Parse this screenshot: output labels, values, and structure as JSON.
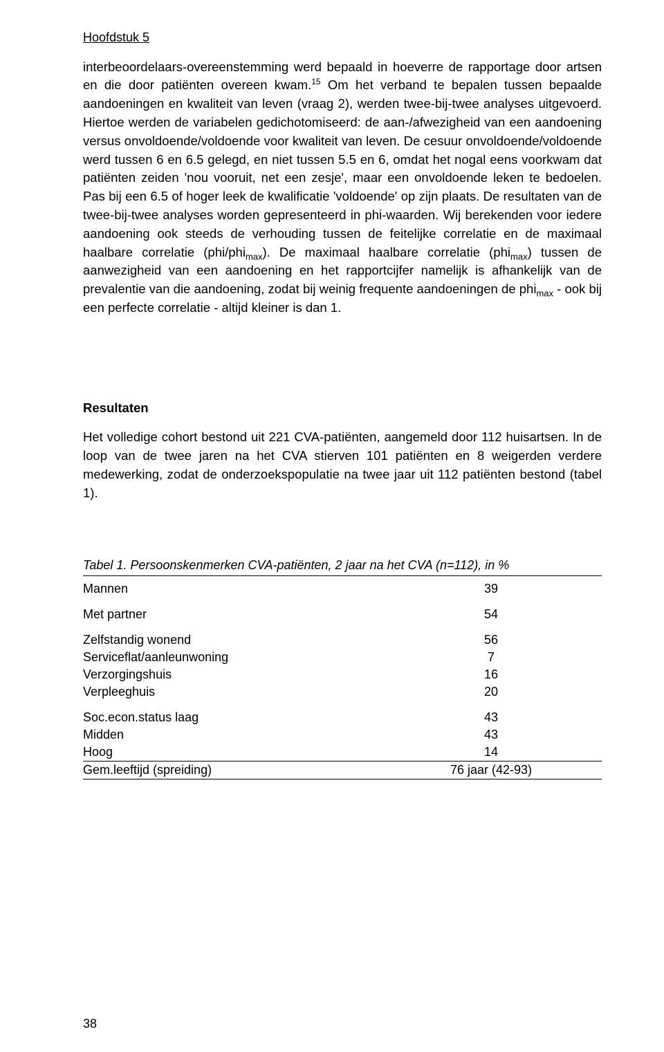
{
  "runningHead": "Hoofdstuk 5",
  "paragraphs": {
    "p1a": "interbeoordelaars-overeenstemming werd bepaald in hoeverre de rapportage door artsen en die door patiënten overeen kwam.",
    "p1_sup": "15",
    "p1b": " Om het verband te bepalen tussen bepaalde aandoeningen en kwaliteit van leven (vraag 2), werden twee-bij-twee analyses uitgevoerd. Hiertoe werden de variabelen gedichotomiseerd: de aan-/afwezigheid van een aandoening versus onvoldoende/voldoende voor kwaliteit van leven. De cesuur onvoldoende/voldoende werd tussen 6 en 6.5 gelegd, en niet tussen 5.5 en 6, omdat het nogal eens voor­kwam dat patiënten zeiden 'nou vooruit, net een zesje', maar een onvoldoende leken te bedoelen. Pas bij een 6.5 of hoger leek de kwalificatie 'voldoende' op zijn plaats. De resultaten van de twee-bij-twee analyses worden gepresenteerd in phi-waarden. Wij berekenden voor iedere aandoening ook steeds de verhouding tussen de feitelijke correlatie en de maximaal haalbare correlatie (phi/phi",
    "p1_sub1": "max",
    "p1c": "). De maximaal haalbare correlatie (phi",
    "p1_sub2": "max",
    "p1d": ") tussen de aanwezigheid van een aandoening en het rapportcijfer namelijk is afhankelijk van de prevalentie van die aandoening, zodat bij weinig frequente aandoeningen de phi",
    "p1_sub3": "max",
    "p1e": " - ook bij een perfecte correlatie - altijd kleiner is dan 1."
  },
  "resultsHeading": "Resultaten",
  "resultsParagraph": "Het volledige cohort bestond uit 221 CVA-patiënten, aangemeld door 112 huisart­sen. In de loop van de twee jaren na het CVA stierven 101 patiënten en 8 weigerden verdere medewerking, zodat de onderzoekspopulatie na twee jaar uit 112 patiënten bestond (tabel 1).",
  "table": {
    "captionLead": "Tabel 1.   ",
    "captionRest": "Persoonskenmerken CVA-patiënten, 2 jaar na het CVA (n=112), in %",
    "rows": [
      {
        "label": "Mannen",
        "value": "39"
      },
      {
        "label": "Met partner",
        "value": "54"
      },
      {
        "label": "Zelfstandig wonend",
        "value": "56"
      },
      {
        "label": "Serviceflat/aanleunwoning",
        "value": "7"
      },
      {
        "label": "Verzorgingshuis",
        "value": "16"
      },
      {
        "label": "Verpleeghuis",
        "value": "20"
      },
      {
        "label": "Soc.econ.status laag",
        "value": "43"
      },
      {
        "label": "Midden",
        "value": "43"
      },
      {
        "label": "Hoog",
        "value": "14"
      },
      {
        "label": "Gem.leeftijd (spreiding)",
        "value": "76 jaar (42-93)"
      }
    ]
  },
  "pageNumber": "38"
}
